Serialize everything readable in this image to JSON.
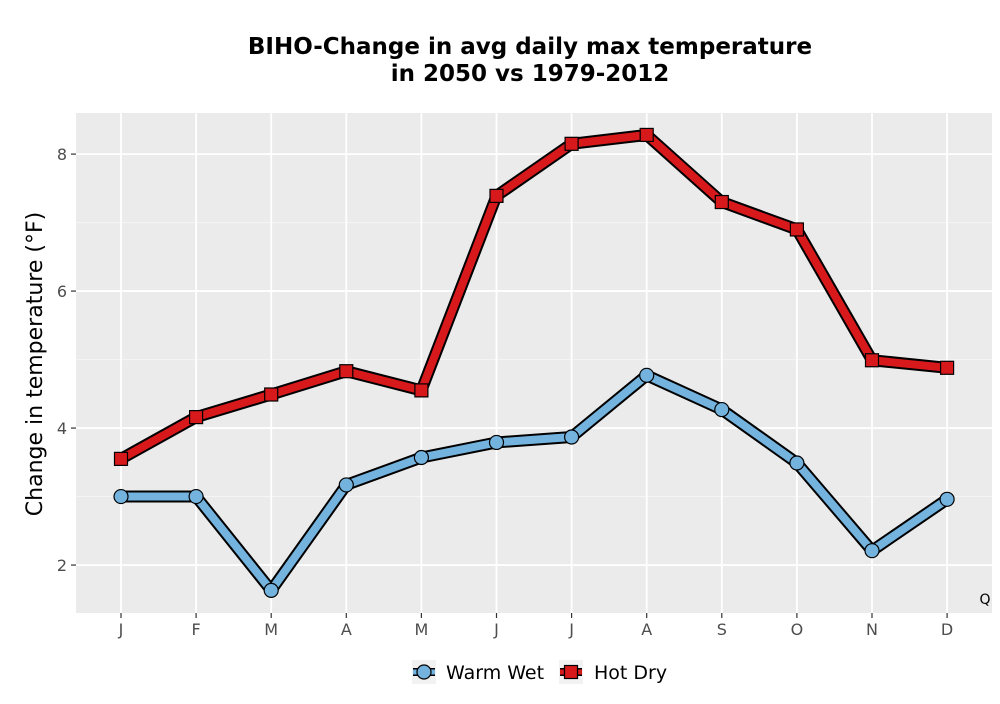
{
  "chart_data": {
    "type": "line",
    "title_lines": [
      "BIHO-Change in avg daily max temperature",
      "in 2050 vs 1979-2012"
    ],
    "ylabel": "Change in temperature (°F)",
    "xlabel": "",
    "categories": [
      "J",
      "F",
      "M",
      "A",
      "M",
      "J",
      "J",
      "A",
      "S",
      "O",
      "N",
      "D"
    ],
    "ylim": [
      1.3,
      8.6
    ],
    "yticks": [
      2,
      4,
      6,
      8
    ],
    "grid": true,
    "legend_position": "bottom",
    "corner_note": "Q",
    "series": [
      {
        "name": "Warm Wet",
        "marker": "circle",
        "color": "#73b3de",
        "values": [
          3.0,
          3.0,
          1.63,
          3.17,
          3.57,
          3.79,
          3.87,
          4.77,
          4.27,
          3.49,
          2.21,
          2.96
        ]
      },
      {
        "name": "Hot Dry",
        "marker": "square",
        "color": "#d7191c",
        "values": [
          3.55,
          4.16,
          4.49,
          4.83,
          4.55,
          7.39,
          8.15,
          8.28,
          7.3,
          6.9,
          4.99,
          4.88
        ]
      }
    ]
  }
}
